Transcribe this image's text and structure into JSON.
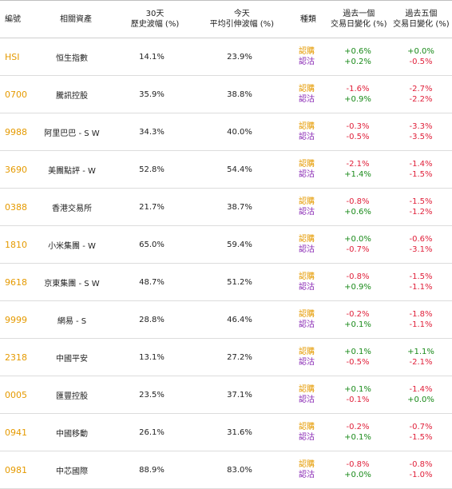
{
  "header": {
    "code": "編號",
    "asset": "相關資產",
    "vol30_line1": "30天",
    "vol30_line2": "歷史波幅 (%)",
    "iv_line1": "今天",
    "iv_line2": "平均引伸波幅 (%)",
    "type": "種類",
    "d1_line1": "過去一個",
    "d1_line2": "交易日變化 (%)",
    "d5_line1": "過去五個",
    "d5_line2": "交易日變化 (%)"
  },
  "colors": {
    "code": "#e59a00",
    "call": "#e59a00",
    "put": "#8a2bb5",
    "positive": "#1a8a1a",
    "negative": "#e0203a"
  },
  "rows": [
    {
      "code": "HSI",
      "asset": "恒生指數",
      "vol30": "14.1%",
      "iv": "23.9%",
      "call": "認購",
      "put": "認沽",
      "d1_call": "+0.6%",
      "d1_put": "+0.2%",
      "d5_call": "+0.0%",
      "d5_put": "-0.5%"
    },
    {
      "code": "0700",
      "asset": "騰訊控股",
      "vol30": "35.9%",
      "iv": "38.8%",
      "call": "認購",
      "put": "認沽",
      "d1_call": "-1.6%",
      "d1_put": "+0.9%",
      "d5_call": "-2.7%",
      "d5_put": "-2.2%"
    },
    {
      "code": "9988",
      "asset": "阿里巴巴 - S W",
      "vol30": "34.3%",
      "iv": "40.0%",
      "call": "認購",
      "put": "認沽",
      "d1_call": "-0.3%",
      "d1_put": "-0.5%",
      "d5_call": "-3.3%",
      "d5_put": "-3.5%"
    },
    {
      "code": "3690",
      "asset": "美團點評 - W",
      "vol30": "52.8%",
      "iv": "54.4%",
      "call": "認購",
      "put": "認沽",
      "d1_call": "-2.1%",
      "d1_put": "+1.4%",
      "d5_call": "-1.4%",
      "d5_put": "-1.5%"
    },
    {
      "code": "0388",
      "asset": "香港交易所",
      "vol30": "21.7%",
      "iv": "38.7%",
      "call": "認購",
      "put": "認沽",
      "d1_call": "-0.8%",
      "d1_put": "+0.6%",
      "d5_call": "-1.5%",
      "d5_put": "-1.2%"
    },
    {
      "code": "1810",
      "asset": "小米集團 - W",
      "vol30": "65.0%",
      "iv": "59.4%",
      "call": "認購",
      "put": "認沽",
      "d1_call": "+0.0%",
      "d1_put": "-0.7%",
      "d5_call": "-0.6%",
      "d5_put": "-3.1%"
    },
    {
      "code": "9618",
      "asset": "京東集團 - S W",
      "vol30": "48.7%",
      "iv": "51.2%",
      "call": "認購",
      "put": "認沽",
      "d1_call": "-0.8%",
      "d1_put": "+0.9%",
      "d5_call": "-1.5%",
      "d5_put": "-1.1%"
    },
    {
      "code": "9999",
      "asset": "網易 - S",
      "vol30": "28.8%",
      "iv": "46.4%",
      "call": "認購",
      "put": "認沽",
      "d1_call": "-0.2%",
      "d1_put": "+0.1%",
      "d5_call": "-1.8%",
      "d5_put": "-1.1%"
    },
    {
      "code": "2318",
      "asset": "中國平安",
      "vol30": "13.1%",
      "iv": "27.2%",
      "call": "認購",
      "put": "認沽",
      "d1_call": "+0.1%",
      "d1_put": "-0.5%",
      "d5_call": "+1.1%",
      "d5_put": "-2.1%"
    },
    {
      "code": "0005",
      "asset": "匯豐控股",
      "vol30": "23.5%",
      "iv": "37.1%",
      "call": "認購",
      "put": "認沽",
      "d1_call": "+0.1%",
      "d1_put": "-0.1%",
      "d5_call": "-1.4%",
      "d5_put": "+0.0%"
    },
    {
      "code": "0941",
      "asset": "中國移動",
      "vol30": "26.1%",
      "iv": "31.6%",
      "call": "認購",
      "put": "認沽",
      "d1_call": "-0.2%",
      "d1_put": "+0.1%",
      "d5_call": "-0.7%",
      "d5_put": "-1.5%"
    },
    {
      "code": "0981",
      "asset": "中芯國際",
      "vol30": "88.9%",
      "iv": "83.0%",
      "call": "認購",
      "put": "認沽",
      "d1_call": "-0.8%",
      "d1_put": "+0.0%",
      "d5_call": "-0.8%",
      "d5_put": "-1.0%"
    }
  ]
}
